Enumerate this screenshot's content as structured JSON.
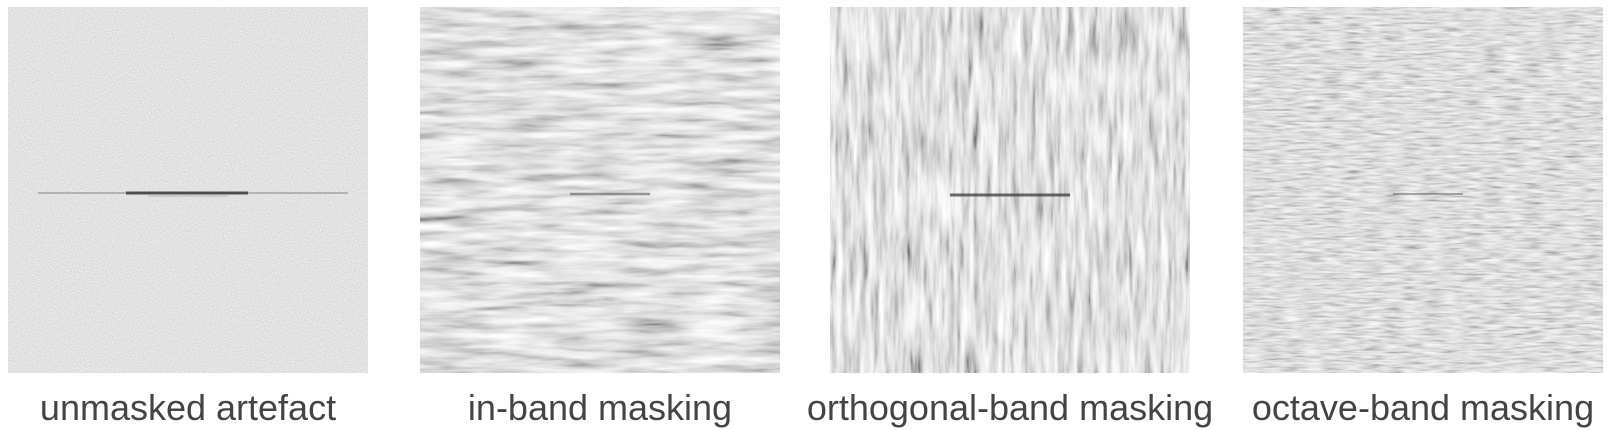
{
  "panels": [
    {
      "caption": "unmasked artefact",
      "pattern": "uniform-grey-with-central-dark-line"
    },
    {
      "caption": "in-band masking",
      "pattern": "horizontal-band-noise"
    },
    {
      "caption": "orthogonal-band masking",
      "pattern": "vertical-band-noise"
    },
    {
      "caption": "octave-band masking",
      "pattern": "fine-horizontal-noise"
    }
  ],
  "colors": {
    "background": "#ffffff",
    "panel_grey": "#8f8f8f",
    "caption_text": "#444444"
  }
}
